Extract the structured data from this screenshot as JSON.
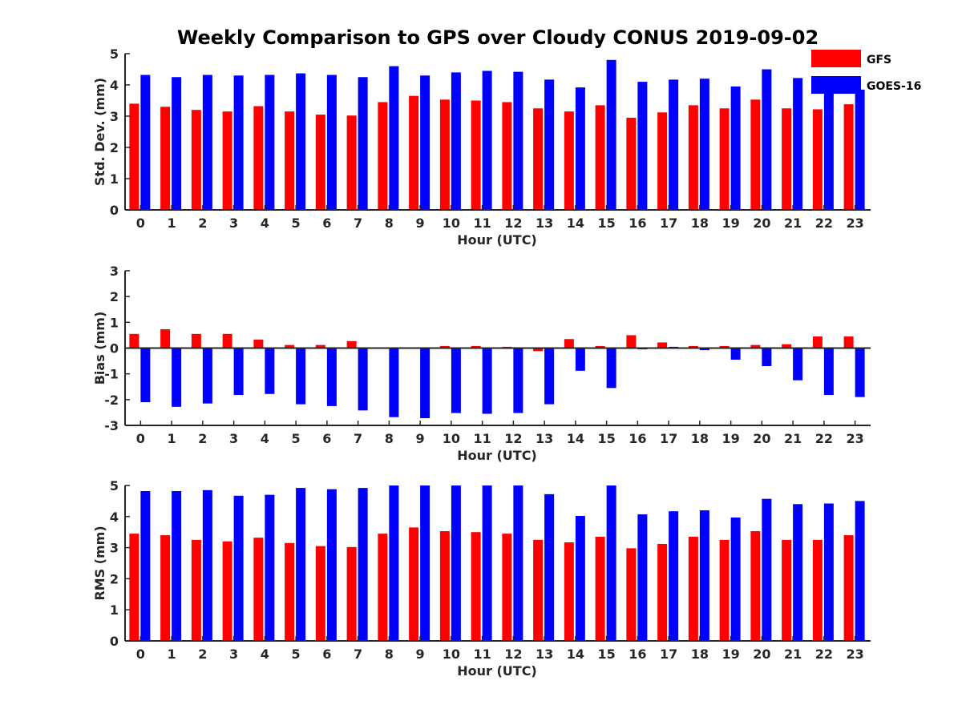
{
  "title": "Weekly Comparison to GPS over Cloudy CONUS 2019-09-02",
  "colors": {
    "gfs": "#ff0000",
    "goes": "#0000ff"
  },
  "legend": {
    "placement": "top-right",
    "entries": [
      "GFS",
      "GOES-16"
    ]
  },
  "chart_data": [
    {
      "type": "bar",
      "ylabel": "Std. Dev. (mm)",
      "xlabel": "Hour (UTC)",
      "ylim": [
        0,
        5
      ],
      "yticks": [
        0,
        1,
        2,
        3,
        4,
        5
      ],
      "categories": [
        "0",
        "1",
        "2",
        "3",
        "4",
        "5",
        "6",
        "7",
        "8",
        "9",
        "10",
        "11",
        "12",
        "13",
        "14",
        "15",
        "16",
        "17",
        "18",
        "19",
        "20",
        "21",
        "22",
        "23"
      ],
      "series": [
        {
          "name": "GFS",
          "values": [
            3.4,
            3.3,
            3.2,
            3.15,
            3.32,
            3.15,
            3.05,
            3.02,
            3.45,
            3.65,
            3.53,
            3.5,
            3.45,
            3.25,
            3.15,
            3.35,
            2.95,
            3.12,
            3.35,
            3.25,
            3.53,
            3.25,
            3.22,
            3.38
          ]
        },
        {
          "name": "GOES-16",
          "values": [
            4.32,
            4.25,
            4.32,
            4.3,
            4.32,
            4.37,
            4.32,
            4.25,
            4.6,
            4.3,
            4.4,
            4.45,
            4.42,
            4.17,
            3.92,
            4.8,
            4.1,
            4.17,
            4.2,
            3.95,
            4.5,
            4.22,
            4.02,
            3.85
          ]
        }
      ]
    },
    {
      "type": "bar",
      "ylabel": "Bias (mm)",
      "xlabel": "Hour (UTC)",
      "ylim": [
        -3,
        3
      ],
      "yticks": [
        -3,
        -2,
        -1,
        0,
        1,
        2,
        3
      ],
      "categories": [
        "0",
        "1",
        "2",
        "3",
        "4",
        "5",
        "6",
        "7",
        "8",
        "9",
        "10",
        "11",
        "12",
        "13",
        "14",
        "15",
        "16",
        "17",
        "18",
        "19",
        "20",
        "21",
        "22",
        "23"
      ],
      "series": [
        {
          "name": "GFS",
          "values": [
            0.55,
            0.73,
            0.55,
            0.55,
            0.33,
            0.12,
            0.12,
            0.27,
            0.0,
            0.0,
            0.08,
            0.08,
            0.05,
            -0.12,
            0.35,
            0.08,
            0.5,
            0.22,
            0.08,
            0.08,
            0.12,
            0.15,
            0.45,
            0.45
          ]
        },
        {
          "name": "GOES-16",
          "values": [
            -2.1,
            -2.28,
            -2.15,
            -1.82,
            -1.78,
            -2.18,
            -2.25,
            -2.42,
            -2.68,
            -2.72,
            -2.52,
            -2.55,
            -2.52,
            -2.18,
            -0.88,
            -1.55,
            -0.05,
            0.05,
            -0.08,
            -0.45,
            -0.7,
            -1.25,
            -1.82,
            -1.9
          ]
        }
      ]
    },
    {
      "type": "bar",
      "ylabel": "RMS (mm)",
      "xlabel": "Hour (UTC)",
      "ylim": [
        0,
        5
      ],
      "yticks": [
        0,
        1,
        2,
        3,
        4,
        5
      ],
      "categories": [
        "0",
        "1",
        "2",
        "3",
        "4",
        "5",
        "6",
        "7",
        "8",
        "9",
        "10",
        "11",
        "12",
        "13",
        "14",
        "15",
        "16",
        "17",
        "18",
        "19",
        "20",
        "21",
        "22",
        "23"
      ],
      "series": [
        {
          "name": "GFS",
          "values": [
            3.45,
            3.4,
            3.25,
            3.2,
            3.32,
            3.15,
            3.05,
            3.02,
            3.45,
            3.65,
            3.53,
            3.5,
            3.45,
            3.25,
            3.17,
            3.35,
            2.98,
            3.12,
            3.35,
            3.25,
            3.53,
            3.25,
            3.25,
            3.4
          ]
        },
        {
          "name": "GOES-16",
          "values": [
            4.82,
            4.82,
            4.85,
            4.67,
            4.7,
            4.92,
            4.88,
            4.92,
            5.0,
            5.0,
            5.0,
            5.0,
            5.0,
            4.72,
            4.02,
            5.0,
            4.07,
            4.17,
            4.2,
            3.97,
            4.57,
            4.4,
            4.42,
            4.5
          ]
        }
      ]
    }
  ]
}
